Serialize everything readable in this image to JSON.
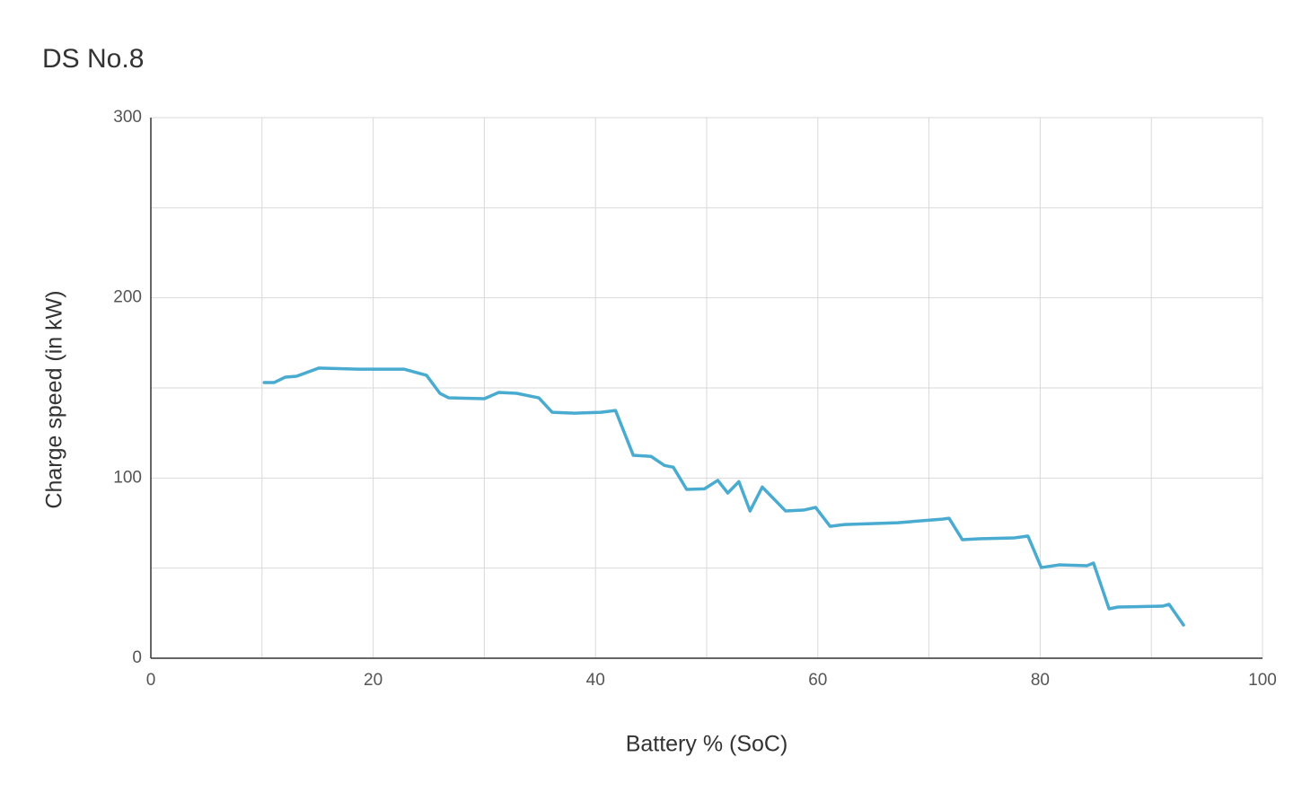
{
  "chart_data": {
    "type": "line",
    "title": "DS No.8",
    "x_label": "Battery % (SoC)",
    "y_label": "Charge speed (in kW)",
    "xlim": [
      0,
      100
    ],
    "ylim": [
      0,
      300
    ],
    "xticks": [
      0,
      20,
      40,
      60,
      80,
      100
    ],
    "yticks": [
      0,
      100,
      200,
      300
    ],
    "xgrid": [
      0,
      10,
      20,
      30,
      40,
      50,
      60,
      70,
      80,
      90,
      100
    ],
    "ygrid": [
      0,
      50,
      100,
      150,
      200,
      250,
      300
    ],
    "grid": true,
    "series": [
      {
        "color": "#4aabd0",
        "x": [
          10.2,
          11.1,
          12.1,
          13.1,
          15.1,
          18.7,
          22.8,
          24.8,
          26,
          26.8,
          30,
          31.3,
          32.9,
          34.9,
          36.1,
          38.1,
          40.5,
          41.8,
          43.4,
          45,
          46.2,
          47,
          48.2,
          49.8,
          51,
          51.9,
          52.9,
          53.9,
          55,
          57.1,
          58.7,
          59.8,
          61.1,
          62.4,
          67.2,
          71.2,
          71.8,
          73,
          74.5,
          77.7,
          78.9,
          80.1,
          81.7,
          84.2,
          84.8,
          86.2,
          87,
          91,
          91.6,
          92.9
        ],
        "values": [
          153,
          153,
          156,
          156.5,
          161,
          160.4,
          160.4,
          157,
          147,
          144.5,
          144,
          147.5,
          147,
          144.5,
          136.5,
          136,
          136.5,
          137.5,
          112.6,
          112,
          107,
          106,
          93.7,
          94,
          98.7,
          91.7,
          98,
          81.7,
          95,
          81.7,
          82.2,
          83.7,
          73.2,
          74.2,
          75.2,
          77.2,
          77.7,
          65.8,
          66.3,
          66.8,
          67.8,
          50.3,
          51.8,
          51.3,
          52.8,
          27.4,
          28.4,
          28.9,
          29.9,
          18.4
        ]
      }
    ]
  }
}
